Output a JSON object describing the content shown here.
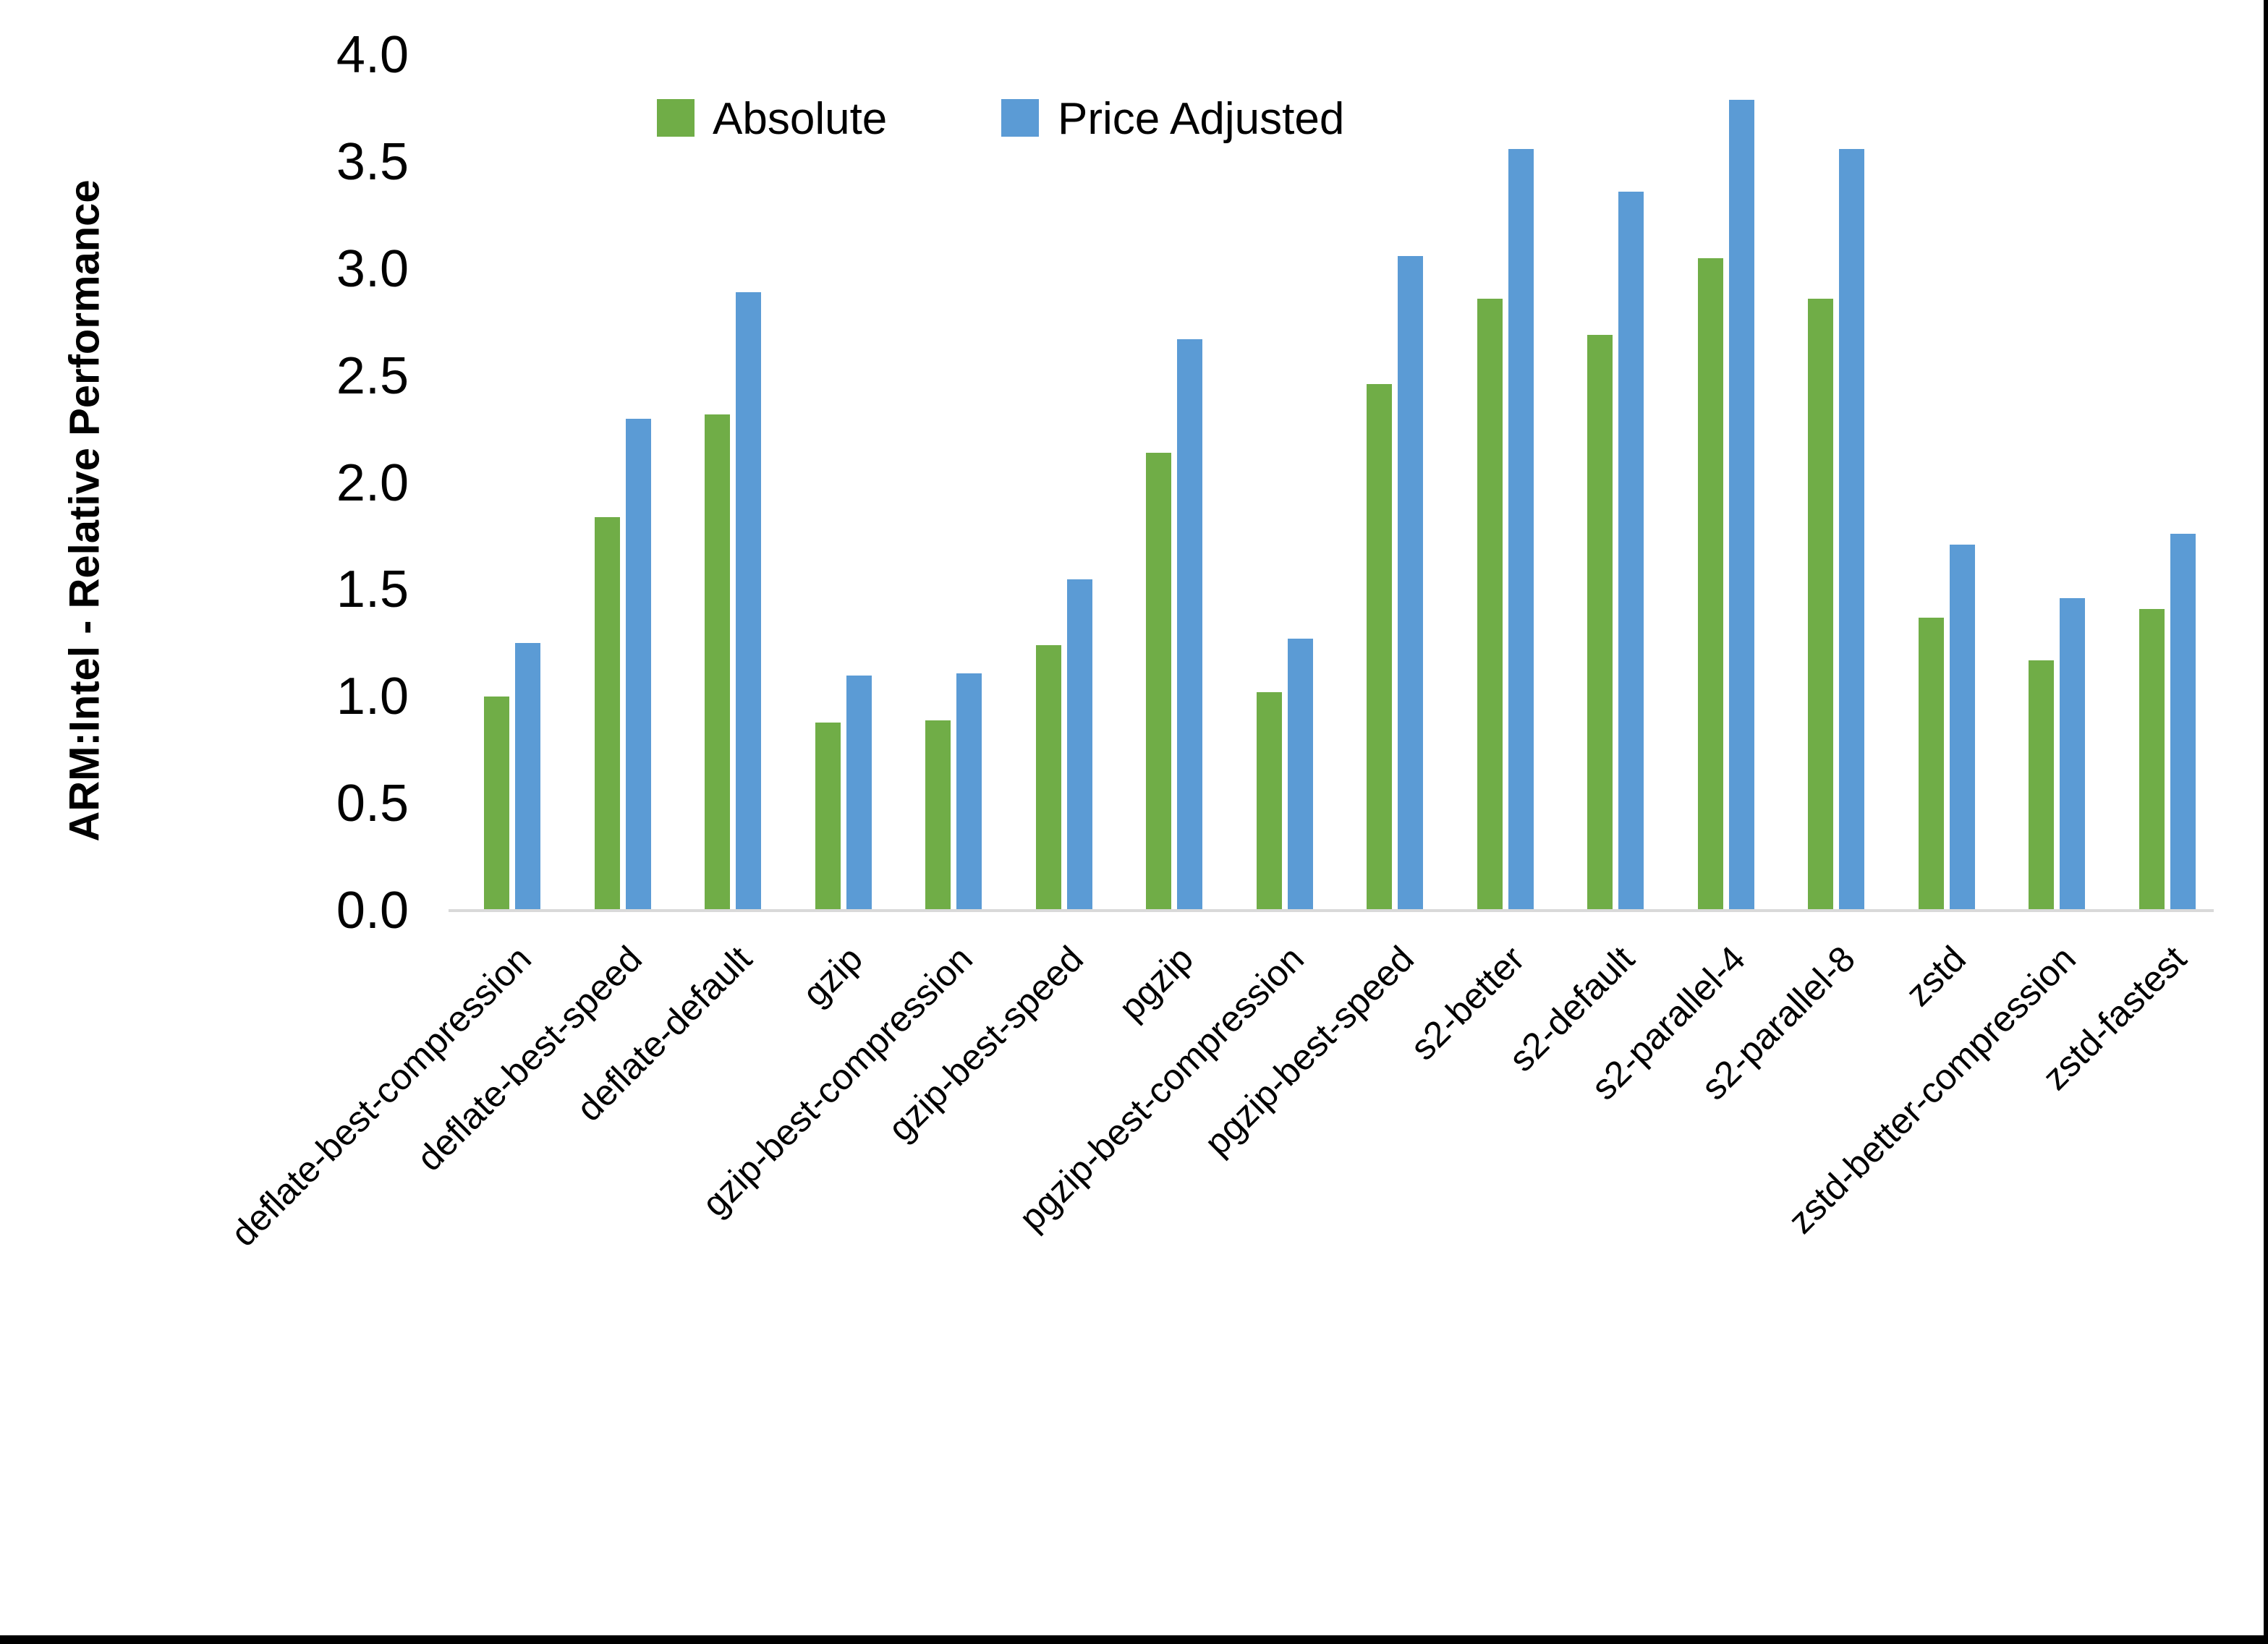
{
  "figure": {
    "background": "#ffffff",
    "frame_color": "#000000",
    "axis_line_color": "#D9D9D9",
    "text_color": "#000000"
  },
  "legend": {
    "items": [
      {
        "label": "Absolute",
        "color": "#70AD47"
      },
      {
        "label": "Price Adjusted",
        "color": "#5B9BD5"
      }
    ]
  },
  "y_axis": {
    "title": "ARM:Intel - Relative Performance",
    "tick_labels": [
      "0.0",
      "0.5",
      "1.0",
      "1.5",
      "2.0",
      "2.5",
      "3.0",
      "3.5",
      "4.0"
    ]
  },
  "chart_data": {
    "type": "bar",
    "title": "",
    "xlabel": "",
    "ylabel": "ARM:Intel - Relative Performance",
    "ylim": [
      0.0,
      4.0
    ],
    "ytick_step": 0.5,
    "grid": false,
    "legend_position": "top-center-inside",
    "x_label_rotation_deg": 45,
    "categories": [
      "deflate-best-compression",
      "deflate-best-speed",
      "deflate-default",
      "gzip",
      "gzip-best-compression",
      "gzip-best-speed",
      "pgzip",
      "pgzip-best-compression",
      "pgzip-best-speed",
      "s2-better",
      "s2-default",
      "s2-parallel-4",
      "s2-parallel-8",
      "zstd",
      "zstd-better-compression",
      "zstd-fastest"
    ],
    "series": [
      {
        "name": "Absolute",
        "color": "#70AD47",
        "values": [
          1.0,
          1.84,
          2.32,
          0.88,
          0.89,
          1.24,
          2.14,
          1.02,
          2.46,
          2.86,
          2.69,
          3.05,
          2.86,
          1.37,
          1.17,
          1.41
        ]
      },
      {
        "name": "Price Adjusted",
        "color": "#5B9BD5",
        "values": [
          1.25,
          2.3,
          2.89,
          1.1,
          1.11,
          1.55,
          2.67,
          1.27,
          3.06,
          3.56,
          3.36,
          3.79,
          3.56,
          1.71,
          1.46,
          1.76
        ]
      }
    ]
  }
}
